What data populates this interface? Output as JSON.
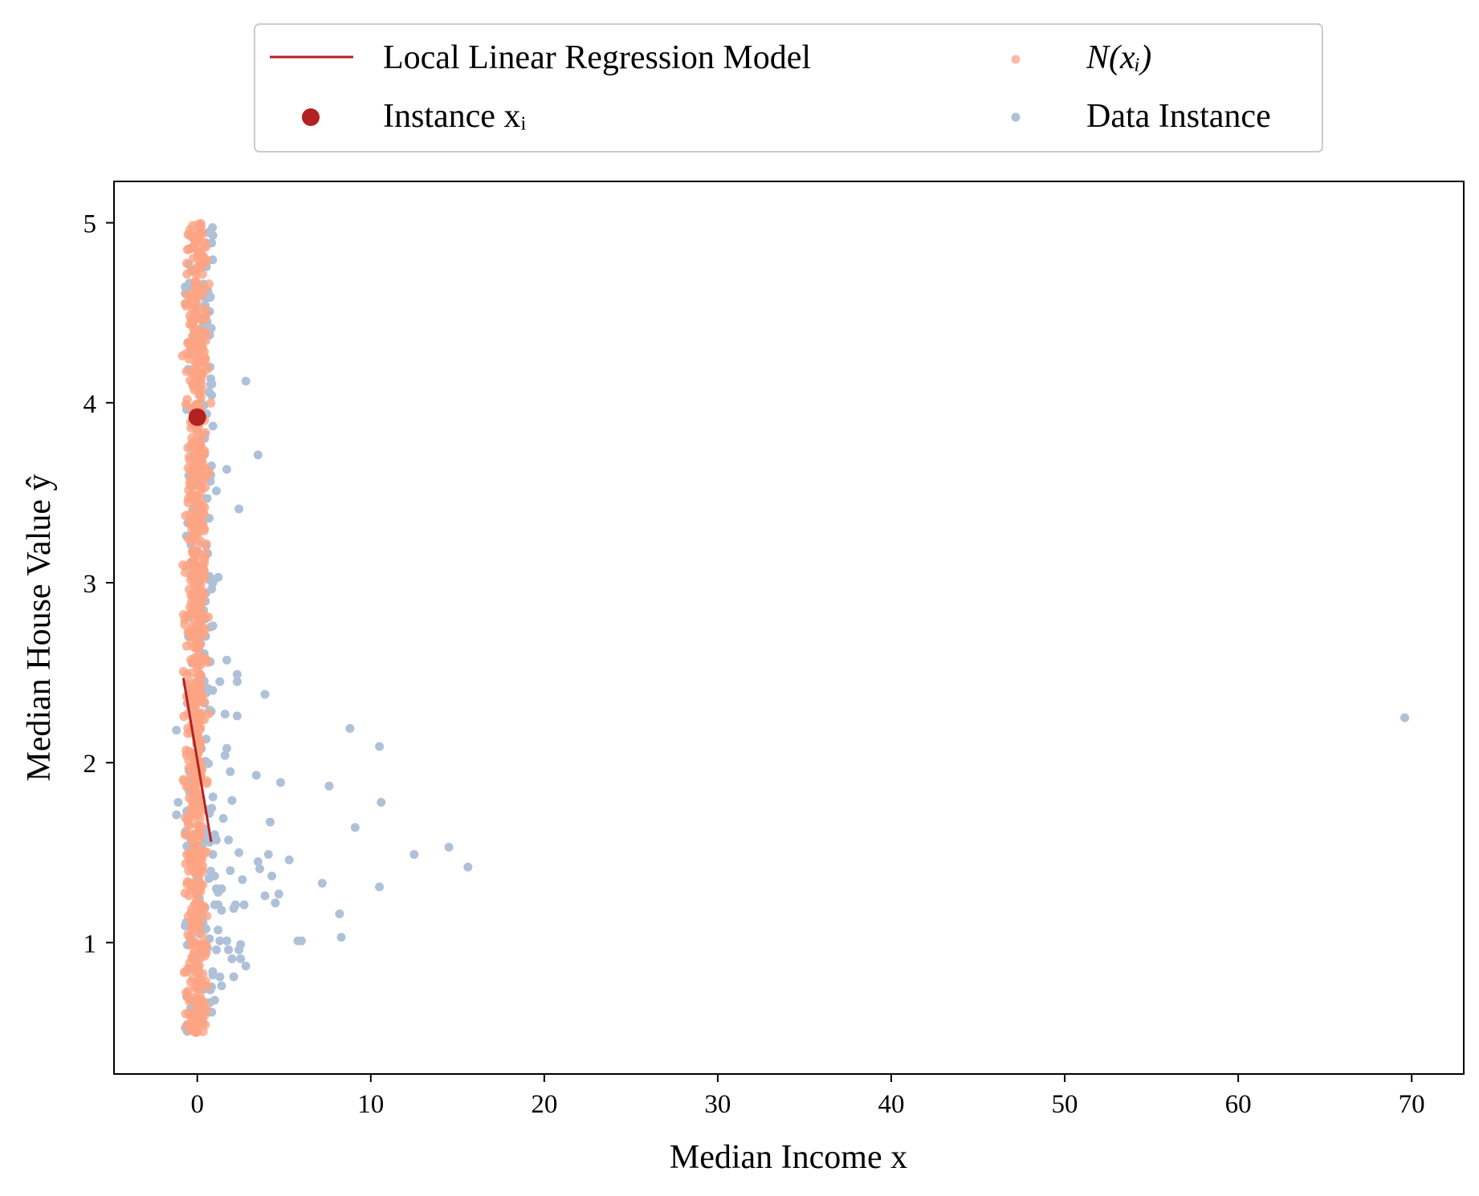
{
  "chart_data": {
    "type": "scatter",
    "xlabel": "Median Income x",
    "ylabel": "Median House Value ŷ",
    "xlim": [
      -4.8,
      73.0
    ],
    "ylim": [
      0.27,
      5.23
    ],
    "x_ticks": [
      0,
      10,
      20,
      30,
      40,
      50,
      60,
      70
    ],
    "y_ticks": [
      1,
      2,
      3,
      4,
      5
    ],
    "legend": {
      "position": "top-center, outside plot",
      "columns": 2,
      "entries": [
        {
          "label": "Local Linear Regression Model",
          "marker": "line",
          "color": "#b22222"
        },
        {
          "label": "N(xᵢ)",
          "marker": "dot",
          "color": "#fba483"
        },
        {
          "label": "Instance xᵢ",
          "marker": "large-dot",
          "color": "#b22222"
        },
        {
          "label": "Data Instance",
          "marker": "dot",
          "color": "#aec1d8"
        }
      ]
    },
    "colors": {
      "regression_line": "#b22222",
      "instance": "#b22222",
      "neighborhood": "#fba483",
      "data_instance": "#aec1d8"
    },
    "series": [
      {
        "name": "Local Linear Regression Model",
        "type": "line",
        "x": [
          -0.8,
          0.8
        ],
        "y": [
          2.47,
          1.56
        ]
      },
      {
        "name": "Instance xᵢ",
        "type": "point",
        "x": [
          0.0
        ],
        "y": [
          3.92
        ]
      },
      {
        "name": "N(xᵢ)",
        "type": "scatter",
        "x_range": [
          -0.9,
          0.9
        ],
        "y_range": [
          0.5,
          5.0
        ],
        "point_count": 800
      },
      {
        "name": "Data Instance",
        "type": "scatter",
        "points": [
          [
            69.6,
            2.25
          ],
          [
            15.6,
            1.42
          ],
          [
            14.5,
            1.53
          ],
          [
            12.5,
            1.49
          ],
          [
            10.5,
            2.09
          ],
          [
            10.6,
            1.78
          ],
          [
            10.5,
            1.31
          ],
          [
            9.1,
            1.64
          ],
          [
            8.8,
            2.19
          ],
          [
            8.3,
            1.03
          ],
          [
            8.2,
            1.16
          ],
          [
            7.6,
            1.87
          ],
          [
            7.2,
            1.33
          ],
          [
            6.0,
            1.01
          ],
          [
            5.8,
            1.01
          ],
          [
            5.3,
            1.46
          ],
          [
            4.8,
            1.89
          ],
          [
            4.7,
            1.27
          ],
          [
            4.5,
            1.22
          ],
          [
            4.3,
            1.37
          ],
          [
            4.2,
            1.67
          ],
          [
            4.1,
            1.49
          ],
          [
            3.9,
            2.38
          ],
          [
            3.9,
            1.26
          ],
          [
            3.6,
            1.41
          ],
          [
            3.5,
            1.45
          ],
          [
            3.4,
            1.93
          ],
          [
            3.5,
            3.71
          ],
          [
            2.8,
            4.12
          ],
          [
            2.8,
            0.87
          ],
          [
            2.7,
            1.21
          ],
          [
            2.6,
            1.35
          ],
          [
            2.5,
            0.91
          ],
          [
            2.5,
            0.99
          ],
          [
            2.4,
            0.96
          ],
          [
            2.4,
            3.41
          ],
          [
            2.4,
            1.5
          ],
          [
            2.3,
            2.45
          ],
          [
            2.3,
            2.49
          ],
          [
            2.3,
            2.26
          ],
          [
            2.2,
            1.21
          ],
          [
            2.1,
            1.19
          ],
          [
            2.1,
            0.81
          ],
          [
            2.0,
            0.91
          ],
          [
            2.0,
            1.79
          ],
          [
            1.9,
            1.95
          ],
          [
            1.9,
            1.4
          ],
          [
            1.8,
            1.57
          ],
          [
            1.8,
            0.96
          ],
          [
            1.7,
            1.01
          ],
          [
            1.7,
            2.08
          ],
          [
            1.7,
            2.57
          ],
          [
            1.7,
            3.63
          ],
          [
            1.6,
            2.27
          ],
          [
            1.6,
            2.04
          ],
          [
            1.5,
            1.69
          ],
          [
            1.4,
            1.18
          ],
          [
            1.4,
            1.3
          ],
          [
            1.4,
            0.76
          ],
          [
            1.3,
            0.81
          ],
          [
            1.3,
            1.01
          ],
          [
            1.3,
            2.45
          ],
          [
            1.2,
            1.21
          ],
          [
            1.2,
            1.28
          ],
          [
            1.2,
            1.07
          ],
          [
            1.2,
            3.03
          ],
          [
            1.1,
            1.57
          ],
          [
            1.1,
            1.3
          ],
          [
            1.1,
            0.96
          ],
          [
            1.1,
            3.51
          ],
          [
            1.0,
            1.21
          ],
          [
            1.0,
            0.68
          ],
          [
            1.0,
            1.37
          ],
          [
            1.0,
            1.6
          ],
          [
            0.9,
            2.76
          ],
          [
            0.9,
            3.0
          ],
          [
            0.9,
            3.87
          ],
          [
            0.9,
            4.93
          ],
          [
            0.9,
            1.81
          ],
          [
            0.9,
            0.82
          ],
          [
            -1.2,
            2.18
          ],
          [
            -1.1,
            1.78
          ],
          [
            -1.2,
            1.71
          ]
        ]
      }
    ]
  }
}
